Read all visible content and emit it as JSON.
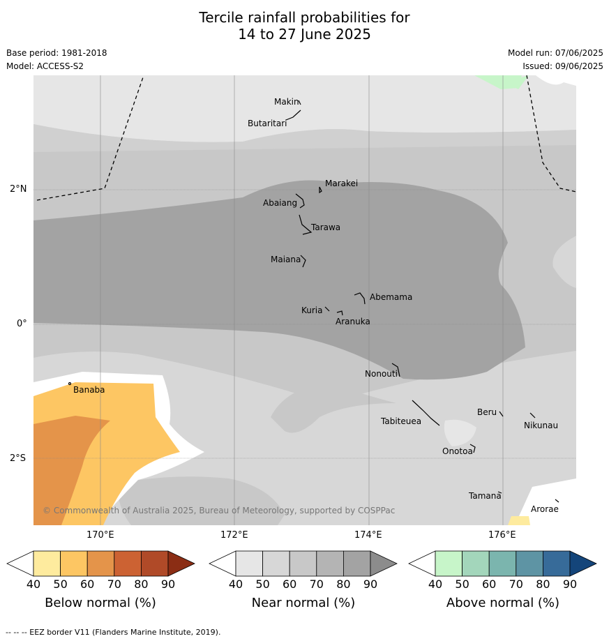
{
  "title_line1": "Tercile rainfall probabilities for",
  "title_line2": "14 to 27 June 2025",
  "base_period": "Base period: 1981-2018",
  "model": "Model: ACCESS-S2",
  "model_run": "Model run: 07/06/2025",
  "issued": "Issued: 09/06/2025",
  "lat_labels": [
    "2°N",
    "0°",
    "2°S"
  ],
  "lon_labels": [
    "170°E",
    "172°E",
    "174°E",
    "176°E"
  ],
  "atolls": [
    "Makin",
    "Butaritari",
    "Marakei",
    "Abaiang",
    "Tarawa",
    "Maiana",
    "Abemama",
    "Kuria",
    "Aranuka",
    "Nonouti",
    "Banaba",
    "Tabiteuea",
    "Beru",
    "Nikunau",
    "Onotoa",
    "Tamana",
    "Arorae"
  ],
  "copyright": "© Commonwealth of Australia 2025, Bureau of Meteorology, supported by COSPPac",
  "colorbars": [
    {
      "title": "Below normal (%)",
      "ticks": [
        "40",
        "50",
        "60",
        "70",
        "80",
        "90"
      ],
      "colors": [
        "#ffffff",
        "#feeb9e",
        "#fdc663",
        "#e4944a",
        "#cc6233",
        "#b04a28",
        "#8b2d14"
      ]
    },
    {
      "title": "Near normal (%)",
      "ticks": [
        "40",
        "50",
        "60",
        "70",
        "80",
        "90"
      ],
      "colors": [
        "#ffffff",
        "#e6e6e6",
        "#d7d7d7",
        "#c8c8c8",
        "#b4b4b4",
        "#a3a3a3",
        "#8c8c8c"
      ]
    },
    {
      "title": "Above normal (%)",
      "ticks": [
        "40",
        "50",
        "60",
        "70",
        "80",
        "90"
      ],
      "colors": [
        "#ffffff",
        "#c7f5c9",
        "#a3d6bb",
        "#7bb5ae",
        "#5e94a4",
        "#376b99",
        "#14457a"
      ]
    }
  ],
  "footer": "--  --  -- EEZ border V11 (Flanders Marine Institute, 2019)."
}
